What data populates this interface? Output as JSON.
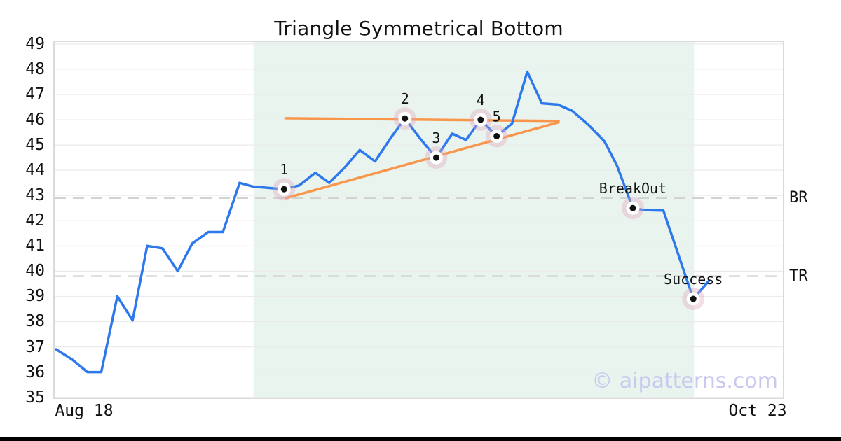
{
  "chart_data": {
    "type": "line",
    "title": "Triangle Symmetrical Bottom",
    "watermark": "© aipatterns.com",
    "x_axis": {
      "start_label": "Aug 18",
      "end_label": "Oct 23",
      "start_pct": 4.0,
      "end_pct": 96.5
    },
    "y_axis": {
      "min": 35,
      "max": 49,
      "ticks": [
        49,
        48,
        47,
        46,
        45,
        44,
        43,
        42,
        41,
        40,
        39,
        38,
        37,
        36,
        35
      ]
    },
    "grid": true,
    "legend": false,
    "pattern_region": {
      "x_start_pct": 27.3,
      "x_end_pct": 87.8
    },
    "price_line": {
      "points": [
        [
          0.2,
          36.9
        ],
        [
          2.4,
          36.5
        ],
        [
          4.5,
          36.0
        ],
        [
          6.4,
          36.0
        ],
        [
          8.6,
          39.0
        ],
        [
          10.7,
          38.05
        ],
        [
          12.7,
          41.0
        ],
        [
          14.8,
          40.9
        ],
        [
          16.9,
          40.0
        ],
        [
          18.9,
          41.1
        ],
        [
          21.1,
          41.55
        ],
        [
          23.1,
          41.55
        ],
        [
          25.4,
          43.5
        ],
        [
          27.3,
          43.35
        ],
        [
          29.4,
          43.3
        ],
        [
          31.5,
          43.25
        ],
        [
          33.6,
          43.4
        ],
        [
          35.8,
          43.9
        ],
        [
          37.7,
          43.5
        ],
        [
          39.8,
          44.1
        ],
        [
          41.9,
          44.8
        ],
        [
          44.0,
          44.35
        ],
        [
          46.2,
          45.3
        ],
        [
          48.1,
          46.05
        ],
        [
          50.2,
          45.25
        ],
        [
          52.4,
          44.5
        ],
        [
          54.6,
          45.45
        ],
        [
          56.5,
          45.2
        ],
        [
          58.5,
          46.0
        ],
        [
          60.7,
          45.35
        ],
        [
          62.8,
          45.85
        ],
        [
          64.9,
          47.9
        ],
        [
          66.9,
          46.65
        ],
        [
          69.1,
          46.6
        ],
        [
          71.1,
          46.35
        ],
        [
          73.3,
          45.8
        ],
        [
          75.5,
          45.15
        ],
        [
          77.2,
          44.2
        ],
        [
          79.4,
          42.5
        ],
        [
          81.0,
          42.42
        ],
        [
          83.6,
          42.4
        ],
        [
          87.7,
          38.9
        ],
        [
          89.8,
          39.6
        ]
      ]
    },
    "trendlines": [
      {
        "name": "upper-resistance",
        "x1_pct": 31.7,
        "v1": 46.06,
        "x2_pct": 69.2,
        "v2": 45.95
      },
      {
        "name": "lower-support",
        "x1_pct": 31.8,
        "v1": 42.9,
        "x2_pct": 69.2,
        "v2": 45.9
      }
    ],
    "levels": [
      {
        "label": "BR",
        "value": 42.9
      },
      {
        "label": "TR",
        "value": 39.8
      }
    ],
    "markers": [
      {
        "label": "1",
        "x_pct": 31.5,
        "value": 43.25
      },
      {
        "label": "2",
        "x_pct": 48.1,
        "value": 46.05
      },
      {
        "label": "3",
        "x_pct": 52.4,
        "value": 44.5
      },
      {
        "label": "4",
        "x_pct": 58.5,
        "value": 46.0
      },
      {
        "label": "5",
        "x_pct": 60.7,
        "value": 45.35
      },
      {
        "label": "BreakOut",
        "x_pct": 79.4,
        "value": 42.5
      },
      {
        "label": "Success",
        "x_pct": 87.7,
        "value": 38.9
      }
    ],
    "colors": {
      "price_line": "#2e78ee",
      "trendline": "#f8964b",
      "marker_halo": "#dfa8ba",
      "marker_dot": "#111111",
      "grid": "#ebebeb",
      "dashed_level": "#d2d2d2",
      "region": "#e9f4ef",
      "axis_border": "#dadada",
      "watermark": "#c9c9ef"
    }
  }
}
